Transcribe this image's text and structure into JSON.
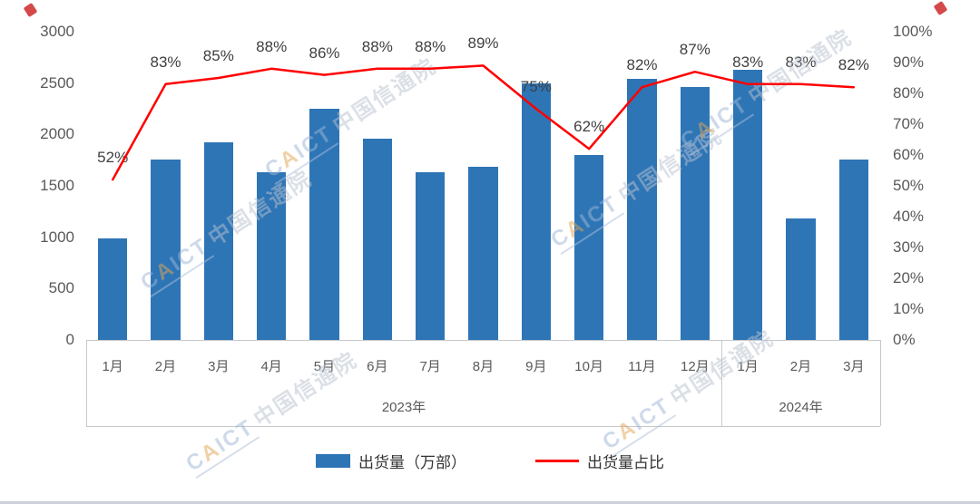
{
  "watermark": {
    "brand": "CAICT",
    "name": "中国信通院",
    "brand_color": "#9fb7d6",
    "brand_accent_color": "#e2a553"
  },
  "chart_data": {
    "type": "bar",
    "combo": "bar+line",
    "categories": [
      "1月",
      "2月",
      "3月",
      "4月",
      "5月",
      "6月",
      "7月",
      "8月",
      "9月",
      "10月",
      "11月",
      "12月",
      "1月",
      "2月",
      "3月"
    ],
    "year_groups": [
      {
        "label": "2023年",
        "span": 12
      },
      {
        "label": "2024年",
        "span": 3
      }
    ],
    "series": [
      {
        "name": "出货量（万部）",
        "type": "bar",
        "color": "#2E75B6",
        "axis": "left",
        "values": [
          990,
          1760,
          1920,
          1630,
          2250,
          1960,
          1630,
          1690,
          2500,
          1800,
          2540,
          2460,
          2630,
          1180,
          1760
        ]
      },
      {
        "name": "出货量占比",
        "type": "line",
        "color": "#FF0000",
        "axis": "right",
        "values": [
          52,
          83,
          85,
          88,
          86,
          88,
          88,
          89,
          75,
          62,
          82,
          87,
          83,
          83,
          82
        ],
        "labels": [
          "52%",
          "83%",
          "85%",
          "88%",
          "86%",
          "88%",
          "88%",
          "89%",
          "75%",
          "62%",
          "82%",
          "87%",
          "83%",
          "83%",
          "82%"
        ]
      }
    ],
    "left_axis": {
      "min": 0,
      "max": 3000,
      "step": 500,
      "ticks": [
        "0",
        "500",
        "1000",
        "1500",
        "2000",
        "2500",
        "3000"
      ]
    },
    "right_axis": {
      "min": 0,
      "max": 100,
      "step": 10,
      "ticks": [
        "0%",
        "10%",
        "20%",
        "30%",
        "40%",
        "50%",
        "60%",
        "70%",
        "80%",
        "90%",
        "100%"
      ]
    },
    "grid": false,
    "legend_position": "bottom",
    "title": ""
  }
}
